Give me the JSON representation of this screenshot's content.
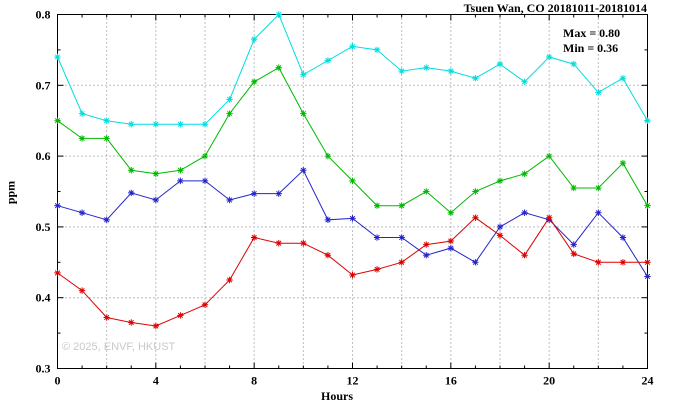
{
  "watermark": "© 2025, ENVF, HKUST",
  "chart_data": {
    "type": "line",
    "title": "Tsuen Wan, CO 20181011-20181014",
    "xlabel": "Hours",
    "ylabel": "ppm",
    "xlim": [
      0,
      24
    ],
    "ylim": [
      0.3,
      0.8
    ],
    "x_major_ticks": [
      0,
      4,
      8,
      12,
      16,
      20,
      24
    ],
    "x_grid_step": 2,
    "y_ticks": [
      0.3,
      0.4,
      0.5,
      0.6,
      0.7,
      0.8
    ],
    "grid": true,
    "marker": "asterisk",
    "legend": {
      "position": "top-right-inside",
      "max_label": "Max = 0.80",
      "min_label": "Min = 0.36"
    },
    "x": [
      0,
      1,
      2,
      3,
      4,
      5,
      6,
      7,
      8,
      9,
      10,
      11,
      12,
      13,
      14,
      15,
      16,
      17,
      18,
      19,
      20,
      21,
      22,
      23,
      24
    ],
    "series": [
      {
        "name": "cyan",
        "color": "#00dede",
        "values": [
          0.74,
          0.66,
          0.65,
          0.645,
          0.645,
          0.645,
          0.645,
          0.68,
          0.765,
          0.8,
          0.715,
          0.735,
          0.755,
          0.75,
          0.72,
          0.725,
          0.72,
          0.71,
          0.73,
          0.705,
          0.74,
          0.73,
          0.69,
          0.71,
          0.65
        ]
      },
      {
        "name": "green",
        "color": "#00b800",
        "values": [
          0.65,
          0.625,
          0.625,
          0.58,
          0.575,
          0.58,
          0.6,
          0.66,
          0.705,
          0.725,
          0.66,
          0.6,
          0.565,
          0.53,
          0.53,
          0.55,
          0.52,
          0.55,
          0.565,
          0.575,
          0.6,
          0.555,
          0.555,
          0.59,
          0.53
        ]
      },
      {
        "name": "blue",
        "color": "#2424cc",
        "values": [
          0.53,
          0.52,
          0.51,
          0.548,
          0.538,
          0.565,
          0.565,
          0.538,
          0.547,
          0.547,
          0.58,
          0.51,
          0.512,
          0.485,
          0.485,
          0.46,
          0.47,
          0.45,
          0.5,
          0.52,
          0.51,
          0.475,
          0.52,
          0.485,
          0.43
        ]
      },
      {
        "name": "red",
        "color": "#dd0000",
        "values": [
          0.435,
          0.41,
          0.372,
          0.365,
          0.36,
          0.375,
          0.39,
          0.425,
          0.485,
          0.477,
          0.477,
          0.46,
          0.432,
          0.44,
          0.45,
          0.475,
          0.48,
          0.513,
          0.488,
          0.46,
          0.513,
          0.462,
          0.45,
          0.45,
          0.45
        ]
      }
    ]
  }
}
